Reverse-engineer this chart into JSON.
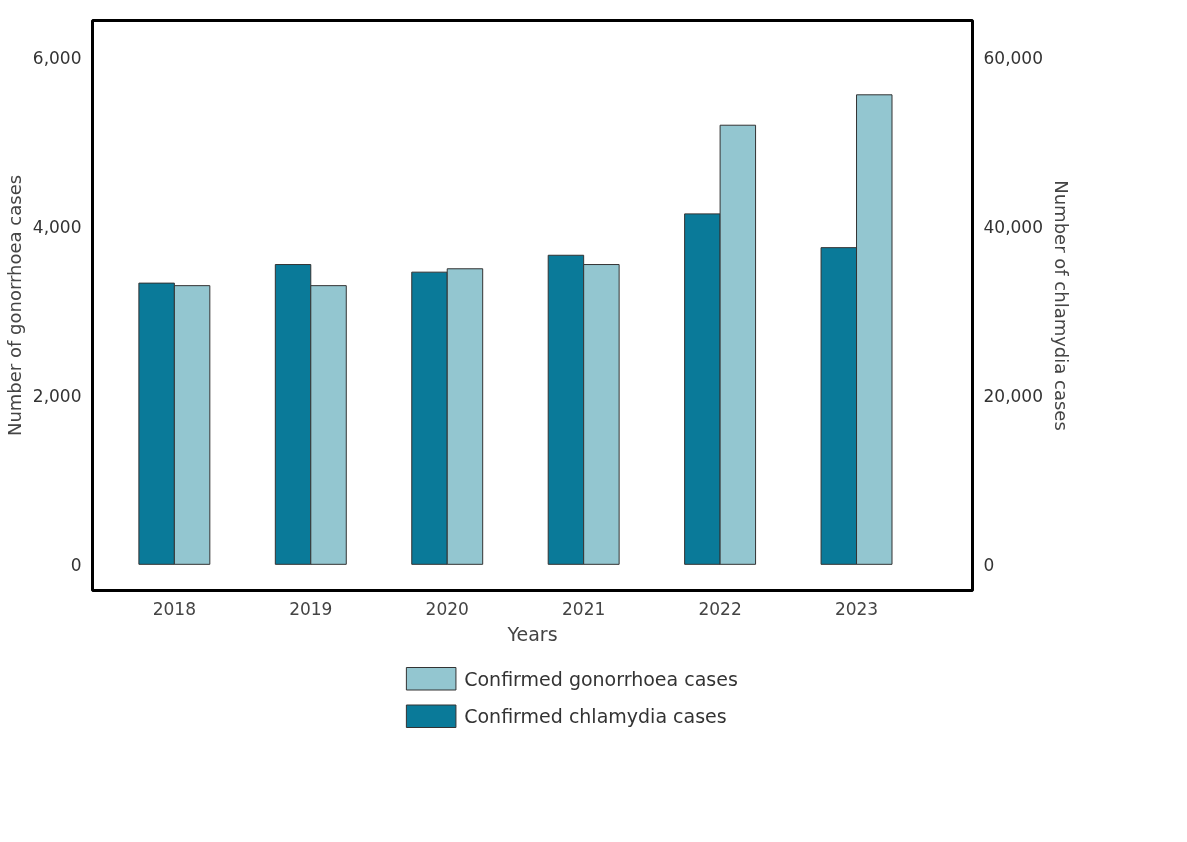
{
  "chart_data": {
    "type": "bar",
    "xlabel": "Years",
    "ylabel": "Number of gonorrhoea cases",
    "y2label": "Number of chlamydia cases",
    "categories": [
      "2018",
      "2019",
      "2020",
      "2021",
      "2022",
      "2023"
    ],
    "series": [
      {
        "name": "Confirmed gonorrhoea cases",
        "color": "#93c6d0",
        "values": [
          3300,
          3300,
          3500,
          3550,
          5200,
          5560
        ]
      },
      {
        "name": "Confirmed chlamydia cases",
        "color": "#0a7a99",
        "axis": "y2",
        "values": [
          33300,
          35500,
          34600,
          36600,
          41500,
          37500
        ]
      }
    ],
    "ylim": [
      -310,
      6440
    ],
    "yticks": [
      0,
      {
        "value": 2000,
        "label": "2,000"
      },
      {
        "value": 4000,
        "label": "4,000"
      },
      {
        "value": 6000,
        "label": "6,000"
      }
    ],
    "y2lim": [
      -3100,
      64400
    ],
    "y2ticks": [
      0,
      {
        "value": 20000,
        "label": "20,000"
      },
      {
        "value": 40000,
        "label": "40,000"
      },
      {
        "value": 60000,
        "label": "60,000"
      }
    ],
    "grid": false,
    "legend": "bottom"
  }
}
